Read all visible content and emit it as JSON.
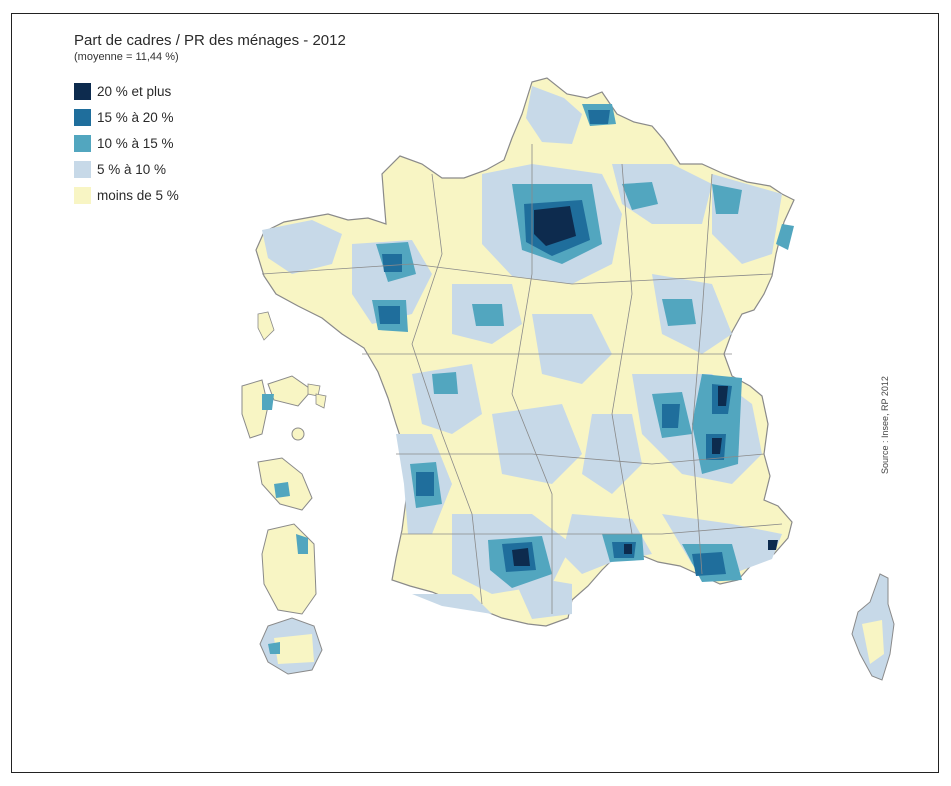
{
  "title": "Part de cadres / PR des ménages - 2012",
  "subtitle": "(moyenne = 11,44 %)",
  "legend": [
    {
      "label": "20 % et plus",
      "color": "#0d2b4e"
    },
    {
      "label": "15 % à 20 %",
      "color": "#1f6e9c"
    },
    {
      "label": "10 % à 15 %",
      "color": "#52a6bf"
    },
    {
      "label": "5 % à 10 %",
      "color": "#c7d9e8"
    },
    {
      "label": "moins de 5 %",
      "color": "#f8f5c4"
    }
  ],
  "source": "Source : Insee, RP 2012",
  "colors": {
    "frame": "#222222",
    "border_lines": "#8a8a8a"
  }
}
